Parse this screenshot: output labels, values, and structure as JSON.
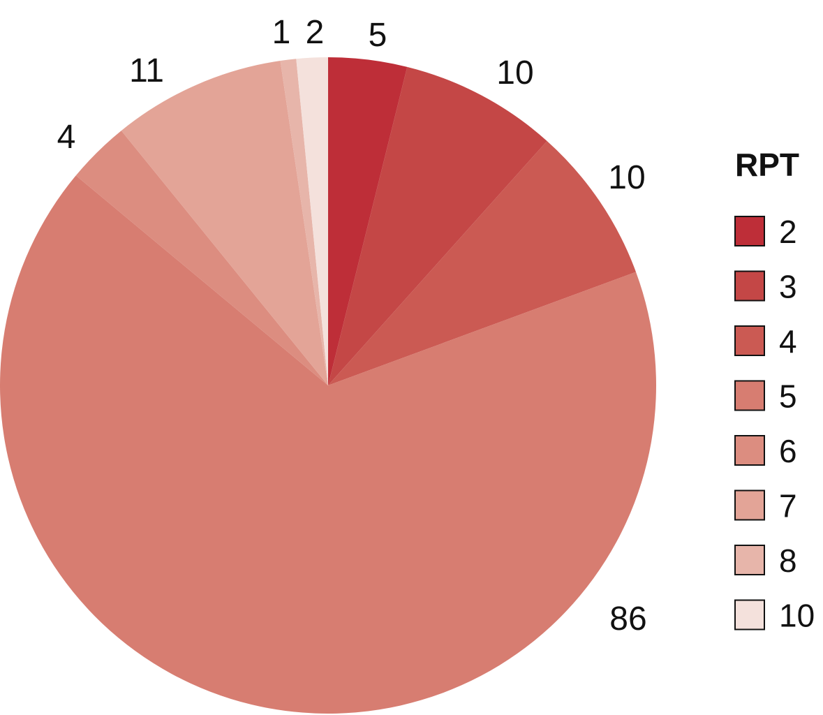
{
  "chart_data": {
    "type": "pie",
    "title": "",
    "legend": {
      "title": "RPT",
      "placement": "right"
    },
    "start_angle": "top, clockwise",
    "slices": [
      {
        "label": "2",
        "value": 5,
        "color": "#be2e38"
      },
      {
        "label": "3",
        "value": 10,
        "color": "#c44746"
      },
      {
        "label": "4",
        "value": 10,
        "color": "#cb5a53"
      },
      {
        "label": "5",
        "value": 86,
        "color": "#d77d71"
      },
      {
        "label": "6",
        "value": 4,
        "color": "#dc8d80"
      },
      {
        "label": "7",
        "value": 11,
        "color": "#e3a497"
      },
      {
        "label": "8",
        "value": 1,
        "color": "#e7b5aa"
      },
      {
        "label": "10",
        "value": 2,
        "color": "#f4e1dc"
      }
    ]
  }
}
